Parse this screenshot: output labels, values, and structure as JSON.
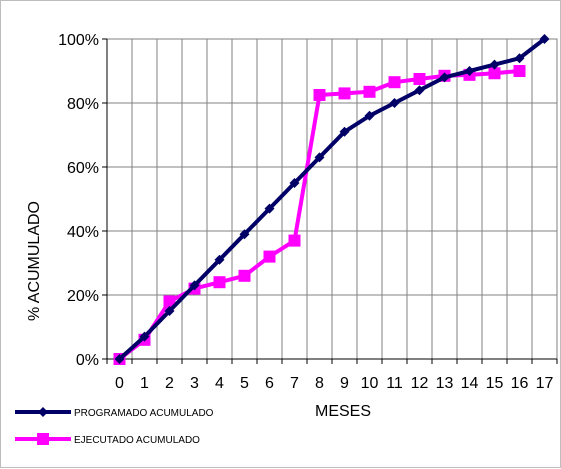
{
  "chart_data": {
    "type": "line",
    "title": "",
    "xlabel": "MESES",
    "ylabel": "% ACUMULADO",
    "x_ticks": [
      "0",
      "1",
      "2",
      "3",
      "4",
      "5",
      "6",
      "7",
      "8",
      "9",
      "10",
      "11",
      "12",
      "13",
      "14",
      "15",
      "16",
      "17"
    ],
    "y_ticks": [
      "0%",
      "20%",
      "40%",
      "60%",
      "80%",
      "100%"
    ],
    "ylim": [
      0,
      100
    ],
    "xlim": [
      -0.5,
      17.5
    ],
    "grid": true,
    "legend_position": "bottom-left",
    "series": [
      {
        "name": "PROGRAMADO ACUMULADO",
        "color": "#000066",
        "marker": "diamond",
        "x": [
          0,
          1,
          2,
          3,
          4,
          5,
          6,
          7,
          8,
          9,
          10,
          11,
          12,
          13,
          14,
          15,
          16,
          17
        ],
        "y": [
          0,
          7,
          15,
          23,
          31,
          39,
          47,
          55,
          63,
          71,
          76,
          80,
          84,
          88,
          90,
          92,
          94,
          100
        ]
      },
      {
        "name": "EJECUTADO ACUMULADO",
        "color": "#ff00ff",
        "marker": "square",
        "x": [
          0,
          1,
          2,
          3,
          4,
          5,
          6,
          7,
          8,
          9,
          10,
          11,
          12,
          13,
          14,
          15,
          16
        ],
        "y": [
          0,
          6,
          18,
          22,
          24,
          26,
          32,
          37,
          82.5,
          83,
          83.5,
          86.5,
          87.5,
          88.5,
          88.8,
          89.3,
          90
        ]
      }
    ]
  }
}
